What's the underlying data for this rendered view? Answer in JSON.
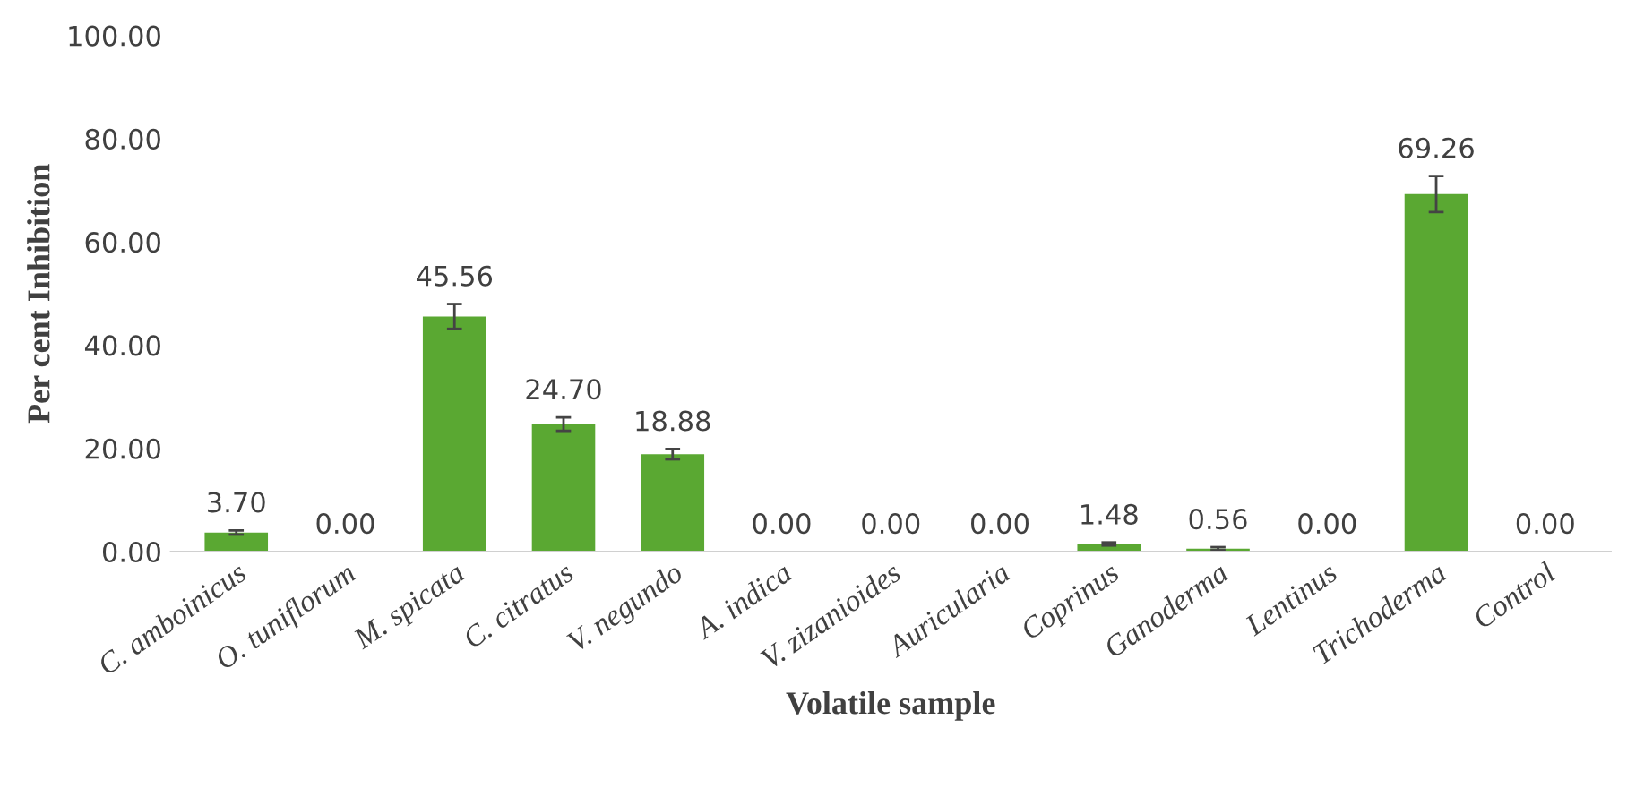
{
  "chart_data": {
    "type": "bar",
    "xlabel": "Volatile sample",
    "ylabel": "Per cent Inhibition",
    "categories": [
      "C. amboinicus",
      "O. tuniflorum",
      "M. spicata",
      "C. citratus",
      "V. negundo",
      "A. indica",
      "V. zizanioides",
      "Auricularia",
      "Coprinus",
      "Ganoderma",
      "Lentinus",
      "Trichoderma",
      "Control"
    ],
    "values": [
      3.7,
      0.0,
      45.56,
      24.7,
      18.88,
      0.0,
      0.0,
      0.0,
      1.48,
      0.56,
      0.0,
      69.26,
      0.0
    ],
    "errors": [
      0.4,
      null,
      2.4,
      1.3,
      1.0,
      null,
      null,
      null,
      0.3,
      0.3,
      null,
      3.5,
      null
    ],
    "value_labels": [
      "3.70",
      "0.00",
      "45.56",
      "24.70",
      "18.88",
      "0.00",
      "0.00",
      "0.00",
      "1.48",
      "0.56",
      "0.00",
      "69.26",
      "0.00"
    ],
    "color": "#5aa832",
    "grid": false,
    "ylim": [
      0,
      100
    ],
    "yticks": [
      {
        "value": 0,
        "label": "0.00"
      },
      {
        "value": 20,
        "label": "20.00"
      },
      {
        "value": 40,
        "label": "40.00"
      },
      {
        "value": 60,
        "label": "60.00"
      },
      {
        "value": 80,
        "label": "80.00"
      },
      {
        "value": 100,
        "label": "100.00"
      }
    ]
  }
}
